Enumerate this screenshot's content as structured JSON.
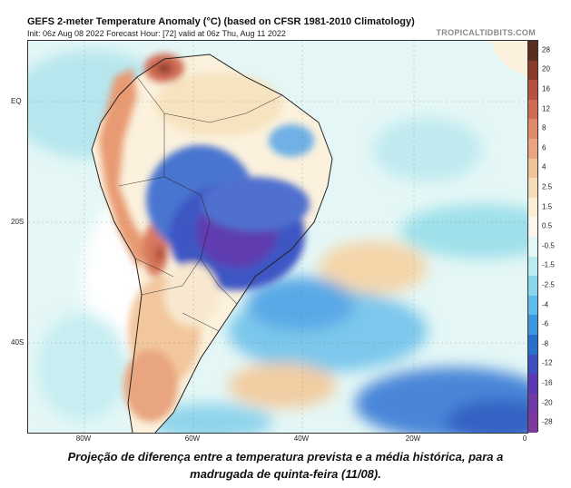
{
  "header": {
    "title": "GEFS 2-meter Temperature Anomaly (°C) (based on CFSR 1981-2010 Climatology)",
    "subtitle": "Init: 06z Aug 08 2022   Forecast Hour: [72]  valid at 06z Thu, Aug 11 2022",
    "source": "TROPICALTIDBITS.COM"
  },
  "map": {
    "lat_labels": [
      "EQ",
      "20S",
      "40S"
    ],
    "lon_labels": [
      "80W",
      "60W",
      "40W",
      "20W",
      "0"
    ]
  },
  "colorbar": {
    "labels": [
      "28",
      "20",
      "16",
      "12",
      "8",
      "6",
      "4",
      "2.5",
      "1.5",
      "0.5",
      "-0.5",
      "-1.5",
      "-2.5",
      "-4",
      "-6",
      "-8",
      "-12",
      "-16",
      "-20",
      "-28"
    ],
    "colors": [
      "#5a2e1e",
      "#8a3a2a",
      "#b5523f",
      "#d06a52",
      "#e08a6a",
      "#e8a57f",
      "#f0c39a",
      "#f6dcb6",
      "#faeed6",
      "#fbf7ec",
      "#e3f7f6",
      "#b9ecf0",
      "#8ad6ec",
      "#5fbbe8",
      "#3c97dd",
      "#2a6fc9",
      "#3d4fbf",
      "#5a3ab0",
      "#6e3aa6",
      "#7d3a9c"
    ]
  },
  "caption": {
    "line1": "Projeção de diferença entre a temperatura prevista e a média histórica, para a",
    "line2": "madrugada de quinta-feira (11/08)."
  }
}
